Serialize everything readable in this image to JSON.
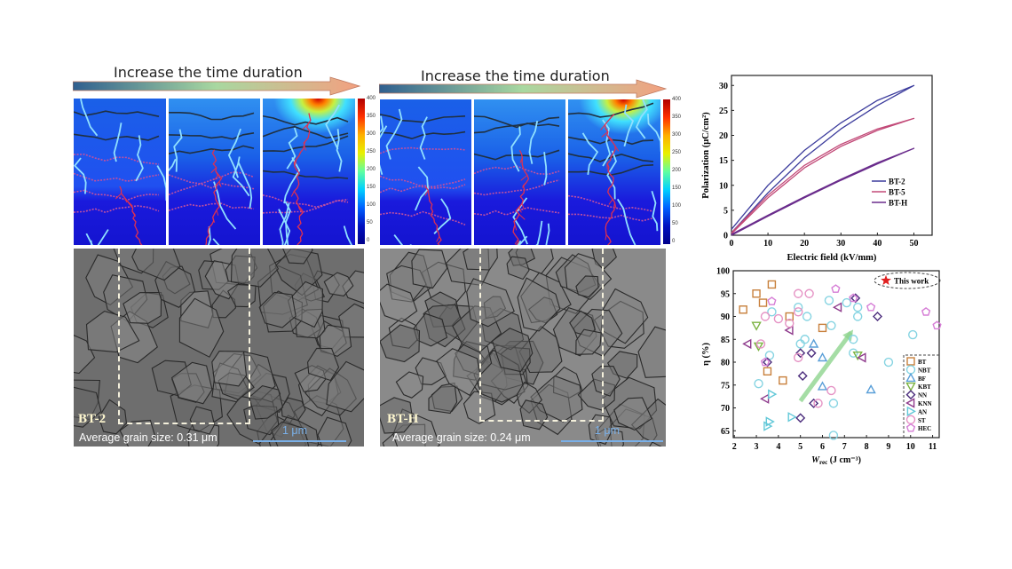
{
  "panel_left": {
    "arrow_title": "Increase the time duration",
    "sample_label": "BT-2",
    "grain_size_text": "Average grain size: 0.31 μm",
    "scale_bar": "1 μm"
  },
  "panel_middle": {
    "arrow_title": "Increase the time duration",
    "sample_label": "BT-H",
    "grain_size_text": "Average grain size: 0.24 μm",
    "scale_bar": "1 μm"
  },
  "colorbar": {
    "ticks": [
      "400",
      "350",
      "300",
      "250",
      "200",
      "150",
      "100",
      "50",
      "0"
    ]
  },
  "chart_data": [
    {
      "type": "line",
      "xlabel": "Electric field (kV/mm)",
      "ylabel": "Polarization (μC/cm²)",
      "xlim": [
        0,
        55
      ],
      "ylim": [
        0,
        32
      ],
      "xticks": [
        0,
        10,
        20,
        30,
        40,
        50
      ],
      "yticks": [
        0,
        5,
        10,
        15,
        20,
        25,
        30
      ],
      "legend_position": "center-right",
      "series": [
        {
          "name": "BT-2",
          "color": "#3b3b9c",
          "x": [
            0,
            10,
            20,
            30,
            40,
            50,
            40,
            30,
            20,
            10,
            0
          ],
          "y": [
            0.5,
            8.5,
            15.5,
            21.3,
            26,
            30,
            27,
            22.5,
            17,
            10,
            1.2
          ]
        },
        {
          "name": "BT-5",
          "color": "#c24a78",
          "x": [
            0,
            10,
            20,
            30,
            40,
            50,
            40,
            30,
            20,
            10,
            0
          ],
          "y": [
            0.3,
            7.5,
            13.5,
            17.8,
            21,
            23.4,
            21.3,
            18.2,
            14,
            8,
            0.5
          ]
        },
        {
          "name": "BT-H",
          "color": "#6a2c8c",
          "x": [
            0,
            10,
            20,
            30,
            40,
            50,
            40,
            30,
            20,
            10,
            0
          ],
          "y": [
            0,
            3.8,
            7.5,
            11,
            14.3,
            17.4,
            14.5,
            11.2,
            7.7,
            4,
            0.2
          ]
        }
      ]
    },
    {
      "type": "scatter",
      "xlabel": "W_rec (J cm⁻³)",
      "xlabel_main": "W",
      "xlabel_sub": "rec",
      "xlabel_unit": " (J cm⁻³)",
      "ylabel": "η (%)",
      "xlim": [
        1.95,
        11.3
      ],
      "ylim": [
        63.5,
        100
      ],
      "xticks": [
        2,
        3,
        4,
        5,
        6,
        7,
        8,
        9,
        10,
        11
      ],
      "yticks": [
        65,
        70,
        75,
        80,
        85,
        90,
        95,
        100
      ],
      "legend_position": "lower-right",
      "annotation": "This work",
      "trend_arrow": {
        "from": [
          5,
          71.5
        ],
        "to": [
          7.3,
          86.5
        ],
        "color": "#8fd48f"
      },
      "series": [
        {
          "name": "BT",
          "marker": "square",
          "color": "#c8803c",
          "points": [
            [
              2.4,
              91.5
            ],
            [
              3,
              95
            ],
            [
              3.3,
              93
            ],
            [
              3.7,
              97
            ],
            [
              4.5,
              90
            ],
            [
              6,
              87.5
            ],
            [
              3.5,
              78
            ],
            [
              4.2,
              76
            ]
          ]
        },
        {
          "name": "NBT",
          "marker": "circle",
          "color": "#86d4e2",
          "points": [
            [
              3.7,
              91
            ],
            [
              3.6,
              81.5
            ],
            [
              3.1,
              75.3
            ],
            [
              4.9,
              92
            ],
            [
              5.3,
              90
            ],
            [
              5.2,
              85
            ],
            [
              5,
              84
            ],
            [
              6.3,
              93.5
            ],
            [
              6.4,
              88
            ],
            [
              7.1,
              93
            ],
            [
              7.6,
              92
            ],
            [
              7.6,
              90
            ],
            [
              7.4,
              85
            ],
            [
              7.4,
              82
            ],
            [
              9,
              80
            ],
            [
              10.1,
              86
            ],
            [
              6.5,
              71
            ],
            [
              6.5,
              64
            ]
          ]
        },
        {
          "name": "BF",
          "marker": "triangle-up",
          "color": "#5a9fd8",
          "points": [
            [
              5.6,
              84
            ],
            [
              6,
              81
            ],
            [
              6,
              74.7
            ],
            [
              8.2,
              74
            ]
          ]
        },
        {
          "name": "KBT",
          "marker": "triangle-down",
          "color": "#7cb342",
          "points": [
            [
              3,
              88
            ],
            [
              3.1,
              83.5
            ],
            [
              7.6,
              81.5
            ]
          ]
        },
        {
          "name": "NN",
          "marker": "diamond",
          "color": "#4b2c7c",
          "points": [
            [
              3.5,
              80
            ],
            [
              5,
              82
            ],
            [
              5.5,
              82
            ],
            [
              5.1,
              77
            ],
            [
              5.6,
              71
            ],
            [
              5,
              67.8
            ],
            [
              7.5,
              94
            ],
            [
              8.5,
              90
            ]
          ]
        },
        {
          "name": "KNN",
          "marker": "triangle-left",
          "color": "#8e3a8c",
          "points": [
            [
              2.6,
              84
            ],
            [
              3.4,
              72
            ],
            [
              4.5,
              87
            ],
            [
              6.7,
              92
            ],
            [
              7.8,
              81
            ]
          ]
        },
        {
          "name": "AN",
          "marker": "triangle-right",
          "color": "#62c8d8",
          "points": [
            [
              3.7,
              73
            ],
            [
              3.6,
              67
            ],
            [
              3.5,
              66
            ],
            [
              4.6,
              68
            ]
          ]
        },
        {
          "name": "ST",
          "marker": "circle",
          "color": "#e592c4",
          "points": [
            [
              3.2,
              84
            ],
            [
              3.4,
              90
            ],
            [
              4,
              89.5
            ],
            [
              4.9,
              95
            ],
            [
              5.4,
              95
            ],
            [
              4.9,
              91
            ],
            [
              4.5,
              88.5
            ],
            [
              4.9,
              81
            ],
            [
              5.8,
              71
            ],
            [
              6.4,
              73.8
            ]
          ]
        },
        {
          "name": "HEC",
          "marker": "pentagon",
          "color": "#d67ed6",
          "points": [
            [
              3.7,
              93.3
            ],
            [
              3.4,
              80
            ],
            [
              6.6,
              96
            ],
            [
              7.4,
              94
            ],
            [
              8.2,
              92
            ],
            [
              10.7,
              91
            ],
            [
              11.2,
              88
            ]
          ]
        }
      ]
    }
  ]
}
